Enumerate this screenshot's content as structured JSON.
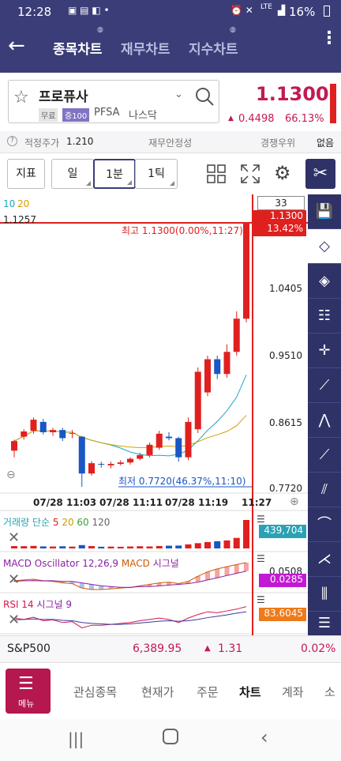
{
  "status": {
    "time": "12:28",
    "battery": "16%",
    "network": "LTE"
  },
  "header": {
    "tabs": [
      "종목차트",
      "재무차트",
      "지수차트"
    ]
  },
  "stock": {
    "name": "프로퓨사",
    "badge_free": "무료",
    "badge_margin": "증100",
    "ticker": "PFSA",
    "market": "나스닥",
    "price": "1.1300",
    "change": "0.4498",
    "change_pct": "66.13%"
  },
  "info": {
    "fair_price_label": "적정주가",
    "fair_price": "1.210",
    "stability_label": "재무안정성",
    "competition_label": "경쟁우위",
    "competition_value": "없음"
  },
  "toolbar": {
    "indicator_label": "지표",
    "day_label": "일",
    "minute_label": "1분",
    "tick_label": "1틱"
  },
  "chart": {
    "ma_label_10": "10",
    "ma_label_20": "20",
    "top_value": "1.1257",
    "count_box": "33",
    "price_box": "1.1300",
    "pct_box": "13.42%",
    "high_annotation": "최고 1.1300(0.00%,11:27)",
    "low_annotation": "최저 0.7720(46.37%,11:10)",
    "y_ticks": [
      "1.0405",
      "0.9510",
      "0.8615",
      "0.7720"
    ],
    "x_ticks": [
      "07/28 11:03",
      "07/28 11:11",
      "07/28 11:19",
      "11:27"
    ],
    "volume_label": "거래량 단순",
    "volume_ma": [
      "5",
      "20",
      "60",
      "120"
    ],
    "volume_value": "439,704",
    "macd_label": "MACD Oscillator 12,26,9",
    "macd_label2": "MACD",
    "macd_label3": "시그널",
    "macd_tick": "0.0508",
    "macd_value": "0.0285",
    "rsi_label": "RSI 14",
    "rsi_label2": "시그널 9",
    "rsi_value": "83.6045"
  },
  "chart_data": {
    "type": "candlestick",
    "x": [
      "11:03",
      "11:04",
      "11:05",
      "11:06",
      "11:07",
      "11:08",
      "11:09",
      "11:10",
      "11:11",
      "11:12",
      "11:13",
      "11:14",
      "11:15",
      "11:16",
      "11:17",
      "11:18",
      "11:19",
      "11:20",
      "11:21",
      "11:22",
      "11:23",
      "11:24",
      "11:25",
      "11:26",
      "11:27"
    ],
    "open": [
      0.821,
      0.84,
      0.848,
      0.86,
      0.846,
      0.849,
      0.845,
      0.84,
      0.79,
      0.803,
      0.801,
      0.803,
      0.805,
      0.81,
      0.815,
      0.825,
      0.84,
      0.838,
      0.812,
      0.85,
      0.9,
      0.945,
      0.925,
      0.955,
      1.0
    ],
    "close": [
      0.834,
      0.847,
      0.863,
      0.846,
      0.849,
      0.838,
      0.845,
      0.79,
      0.804,
      0.802,
      0.803,
      0.805,
      0.81,
      0.815,
      0.829,
      0.844,
      0.838,
      0.812,
      0.86,
      0.928,
      0.945,
      0.925,
      0.955,
      1.0,
      1.13
    ],
    "high": [
      0.836,
      0.85,
      0.866,
      0.864,
      0.852,
      0.852,
      0.849,
      0.841,
      0.807,
      0.806,
      0.806,
      0.808,
      0.812,
      0.818,
      0.832,
      0.848,
      0.846,
      0.84,
      0.866,
      0.934,
      0.95,
      0.95,
      0.965,
      1.01,
      1.13
    ],
    "low": [
      0.812,
      0.836,
      0.844,
      0.843,
      0.841,
      0.834,
      0.838,
      0.772,
      0.787,
      0.798,
      0.797,
      0.801,
      0.802,
      0.808,
      0.812,
      0.822,
      0.835,
      0.806,
      0.808,
      0.845,
      0.895,
      0.918,
      0.92,
      0.95,
      0.995
    ],
    "ylim": [
      0.772,
      1.1257
    ],
    "high_value": 1.13,
    "low_value": 0.772,
    "volume": [
      3000,
      2800,
      3500,
      2200,
      2000,
      2500,
      1800,
      6000,
      3000,
      1500,
      1800,
      1500,
      2000,
      2600,
      2100,
      3200,
      4000,
      4500,
      9000,
      15000,
      22000,
      28000,
      35000,
      60000,
      439704
    ],
    "rsi": [
      58,
      55,
      60,
      52,
      54,
      48,
      50,
      36,
      42,
      42,
      44,
      46,
      48,
      52,
      55,
      58,
      55,
      48,
      58,
      66,
      72,
      70,
      74,
      78,
      83.6045
    ],
    "rsi_signal": [
      54,
      55,
      56,
      55,
      55,
      53,
      52,
      48,
      46,
      45,
      44,
      44,
      45,
      47,
      49,
      51,
      52,
      51,
      52,
      55,
      59,
      62,
      65,
      69,
      72
    ],
    "macd": [
      0.004,
      0.005,
      0.006,
      0.004,
      0.003,
      0.001,
      0.0,
      -0.006,
      -0.008,
      -0.008,
      -0.007,
      -0.006,
      -0.005,
      -0.003,
      -0.001,
      0.001,
      0.002,
      0.0,
      0.003,
      0.01,
      0.016,
      0.02,
      0.023,
      0.026,
      0.0285
    ],
    "macd_signal": [
      0.003,
      0.004,
      0.004,
      0.004,
      0.004,
      0.003,
      0.003,
      0.001,
      -0.001,
      -0.003,
      -0.004,
      -0.005,
      -0.005,
      -0.004,
      -0.004,
      -0.003,
      -0.002,
      -0.001,
      0.0,
      0.002,
      0.005,
      0.008,
      0.011,
      0.014,
      0.017
    ]
  },
  "side_tools": [
    "save-icon",
    "eraser-icon",
    "erase-all-icon",
    "fibonacci-icon",
    "crosshair-icon",
    "trendline-icon",
    "zigzag-icon",
    "line-icon",
    "channel-icon",
    "arc-icon",
    "fan-icon",
    "bars-icon",
    "levels-icon"
  ],
  "index": {
    "name": "S&P500",
    "value": "6,389.95",
    "change": "1.31",
    "pct": "0.02%"
  },
  "nav": {
    "menu_label": "메뉴",
    "items": [
      "관심종목",
      "현재가",
      "주문",
      "차트",
      "계좌",
      "소"
    ]
  },
  "colors": {
    "up": "#e0201f",
    "down": "#1a56c4",
    "header": "#3b3d78",
    "sidebar": "#2f3267",
    "menu": "#b5174f"
  }
}
